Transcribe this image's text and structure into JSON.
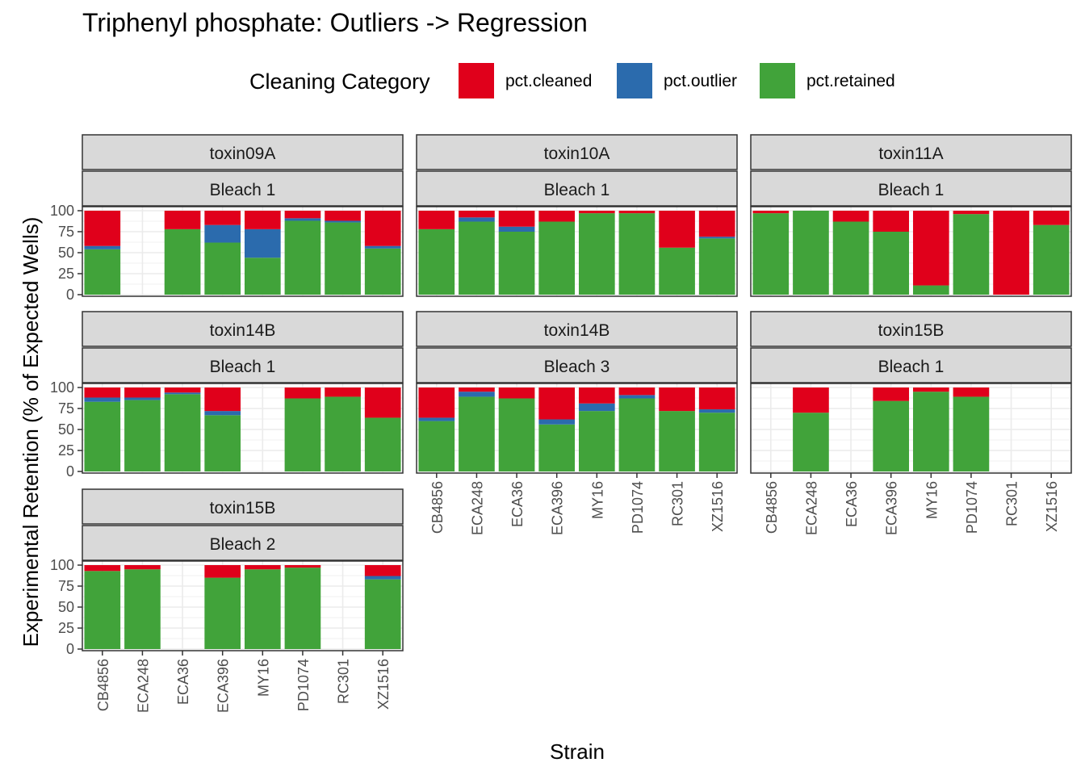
{
  "chart_data": {
    "type": "bar",
    "stacked": true,
    "title": "Triphenyl phosphate: Outliers -> Regression",
    "xlabel": "Strain",
    "ylabel": "Experimental Retention (% of Expected Wells)",
    "ylim": [
      0,
      100
    ],
    "yticks": [
      0,
      25,
      50,
      75,
      100
    ],
    "legend": {
      "title": "Cleaning Category",
      "position": "top",
      "entries": [
        {
          "key": "pct.cleaned",
          "label": "pct.cleaned",
          "color": "#E0001B"
        },
        {
          "key": "pct.outlier",
          "label": "pct.outlier",
          "color": "#2B6BAD"
        },
        {
          "key": "pct.retained",
          "label": "pct.retained",
          "color": "#41A33A"
        }
      ]
    },
    "categories": [
      "CB4856",
      "ECA248",
      "ECA36",
      "ECA396",
      "MY16",
      "PD1074",
      "RC301",
      "XZ1516"
    ],
    "panels": [
      {
        "strip1": "toxin09A",
        "strip2": "Bleach 1",
        "bars": [
          {
            "strain": "CB4856",
            "retained": 54,
            "outlier": 4,
            "cleaned": 42
          },
          {
            "strain": "ECA36",
            "retained": 78,
            "outlier": 0,
            "cleaned": 22
          },
          {
            "strain": "ECA396",
            "retained": 62,
            "outlier": 21,
            "cleaned": 17
          },
          {
            "strain": "MY16",
            "retained": 44,
            "outlier": 34,
            "cleaned": 22
          },
          {
            "strain": "PD1074",
            "retained": 88,
            "outlier": 3,
            "cleaned": 9
          },
          {
            "strain": "RC301",
            "retained": 86,
            "outlier": 2,
            "cleaned": 12
          },
          {
            "strain": "XZ1516",
            "retained": 55,
            "outlier": 3,
            "cleaned": 42
          }
        ]
      },
      {
        "strip1": "toxin10A",
        "strip2": "Bleach 1",
        "bars": [
          {
            "strain": "CB4856",
            "retained": 78,
            "outlier": 0,
            "cleaned": 22
          },
          {
            "strain": "ECA248",
            "retained": 87,
            "outlier": 5,
            "cleaned": 8
          },
          {
            "strain": "ECA36",
            "retained": 75,
            "outlier": 6,
            "cleaned": 19
          },
          {
            "strain": "ECA396",
            "retained": 87,
            "outlier": 0,
            "cleaned": 13
          },
          {
            "strain": "MY16",
            "retained": 97,
            "outlier": 0,
            "cleaned": 3
          },
          {
            "strain": "PD1074",
            "retained": 97,
            "outlier": 0,
            "cleaned": 3
          },
          {
            "strain": "RC301",
            "retained": 56,
            "outlier": 0,
            "cleaned": 44
          },
          {
            "strain": "XZ1516",
            "retained": 67,
            "outlier": 2,
            "cleaned": 31
          }
        ]
      },
      {
        "strip1": "toxin11A",
        "strip2": "Bleach 1",
        "bars": [
          {
            "strain": "CB4856",
            "retained": 97,
            "outlier": 0,
            "cleaned": 3
          },
          {
            "strain": "ECA248",
            "retained": 100,
            "outlier": 0,
            "cleaned": 0
          },
          {
            "strain": "ECA36",
            "retained": 87,
            "outlier": 0,
            "cleaned": 13
          },
          {
            "strain": "ECA396",
            "retained": 75,
            "outlier": 0,
            "cleaned": 25
          },
          {
            "strain": "MY16",
            "retained": 11,
            "outlier": 0,
            "cleaned": 89
          },
          {
            "strain": "PD1074",
            "retained": 96,
            "outlier": 0,
            "cleaned": 4
          },
          {
            "strain": "RC301",
            "retained": 0,
            "outlier": 0,
            "cleaned": 100
          },
          {
            "strain": "XZ1516",
            "retained": 83,
            "outlier": 0,
            "cleaned": 17
          }
        ]
      },
      {
        "strip1": "toxin14B",
        "strip2": "Bleach 1",
        "bars": [
          {
            "strain": "CB4856",
            "retained": 83,
            "outlier": 5,
            "cleaned": 12
          },
          {
            "strain": "ECA248",
            "retained": 85,
            "outlier": 3,
            "cleaned": 12
          },
          {
            "strain": "ECA36",
            "retained": 92,
            "outlier": 2,
            "cleaned": 6
          },
          {
            "strain": "ECA396",
            "retained": 67,
            "outlier": 5,
            "cleaned": 28
          },
          {
            "strain": "PD1074",
            "retained": 87,
            "outlier": 0,
            "cleaned": 13
          },
          {
            "strain": "RC301",
            "retained": 89,
            "outlier": 0,
            "cleaned": 11
          },
          {
            "strain": "XZ1516",
            "retained": 64,
            "outlier": 0,
            "cleaned": 36
          }
        ]
      },
      {
        "strip1": "toxin14B",
        "strip2": "Bleach 3",
        "bars": [
          {
            "strain": "CB4856",
            "retained": 60,
            "outlier": 4,
            "cleaned": 36
          },
          {
            "strain": "ECA248",
            "retained": 89,
            "outlier": 6,
            "cleaned": 5
          },
          {
            "strain": "ECA36",
            "retained": 87,
            "outlier": 0,
            "cleaned": 13
          },
          {
            "strain": "ECA396",
            "retained": 56,
            "outlier": 6,
            "cleaned": 38
          },
          {
            "strain": "MY16",
            "retained": 72,
            "outlier": 9,
            "cleaned": 19
          },
          {
            "strain": "PD1074",
            "retained": 87,
            "outlier": 4,
            "cleaned": 9
          },
          {
            "strain": "RC301",
            "retained": 72,
            "outlier": 0,
            "cleaned": 28
          },
          {
            "strain": "XZ1516",
            "retained": 70,
            "outlier": 4,
            "cleaned": 26
          }
        ]
      },
      {
        "strip1": "toxin15B",
        "strip2": "Bleach 1",
        "bars": [
          {
            "strain": "ECA248",
            "retained": 70,
            "outlier": 0,
            "cleaned": 30
          },
          {
            "strain": "ECA396",
            "retained": 84,
            "outlier": 0,
            "cleaned": 16
          },
          {
            "strain": "MY16",
            "retained": 95,
            "outlier": 0,
            "cleaned": 5
          },
          {
            "strain": "PD1074",
            "retained": 89,
            "outlier": 0,
            "cleaned": 11
          }
        ]
      },
      {
        "strip1": "toxin15B",
        "strip2": "Bleach 2",
        "bars": [
          {
            "strain": "CB4856",
            "retained": 93,
            "outlier": 0,
            "cleaned": 7
          },
          {
            "strain": "ECA248",
            "retained": 95,
            "outlier": 0,
            "cleaned": 5
          },
          {
            "strain": "ECA396",
            "retained": 85,
            "outlier": 0,
            "cleaned": 15
          },
          {
            "strain": "MY16",
            "retained": 95,
            "outlier": 0,
            "cleaned": 5
          },
          {
            "strain": "PD1074",
            "retained": 97,
            "outlier": 0,
            "cleaned": 3
          },
          {
            "strain": "XZ1516",
            "retained": 83,
            "outlier": 4,
            "cleaned": 13
          }
        ]
      }
    ]
  }
}
